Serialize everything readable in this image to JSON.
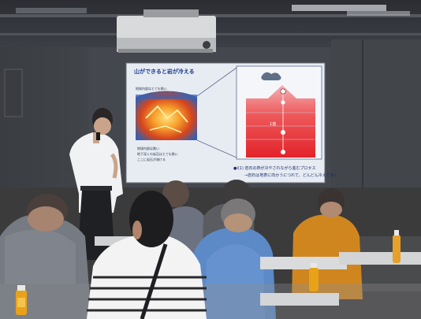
{
  "slide": {
    "title": "山ができると岩が冷える",
    "small_label": "地球内部はとても熱い",
    "bullets": [
      "地球内部は熱い",
      "地下深くの岩石はとても熱い",
      "ここに岩石が溶ける"
    ],
    "caption_line1": "●Ⅰ(1) 岩石の熱が冷やされながら進むプロセス",
    "caption_line2": "→岩石は地表に向かうにつれて、どんどん冷えてゆく",
    "diagram_label": "1億",
    "colors": {
      "slide_bg": "#dfe7f2",
      "heat_red": "#e6332f",
      "deep_blue": "#1b3f9a"
    }
  }
}
